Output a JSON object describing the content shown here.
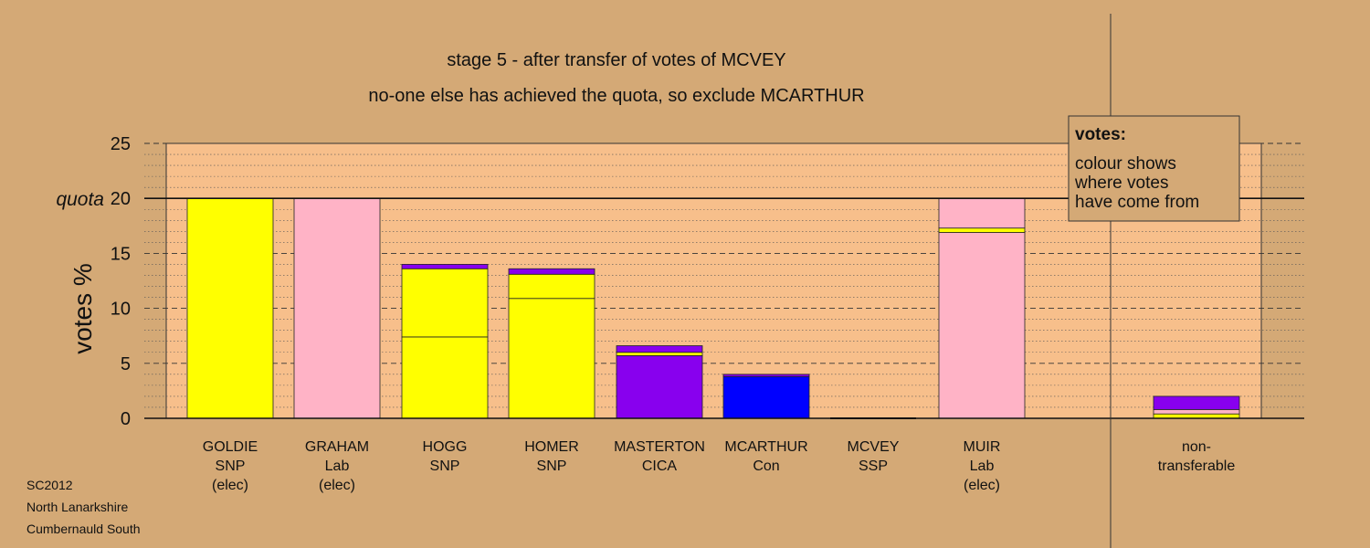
{
  "titles": [
    "stage 5 - after transfer of votes of MCVEY",
    "no-one else has achieved the quota, so exclude MCARTHUR"
  ],
  "footer": [
    "SC2012",
    "North Lanarkshire",
    "Cumbernauld South"
  ],
  "legend": {
    "title": "votes:",
    "lines": [
      "colour shows",
      "where votes",
      "have come from"
    ]
  },
  "colors": {
    "page_bg": "#d4a976",
    "plot_bg": "#f7bf8b",
    "SNP": "#ffff00",
    "Lab": "#ffb3c6",
    "CICA": "#8800ee",
    "Con": "#0000ff"
  },
  "chart_data": {
    "type": "bar",
    "stacked": true,
    "ylabel": "votes %",
    "ylim": [
      0,
      25
    ],
    "yticks": [
      0,
      5,
      10,
      15,
      20,
      25
    ],
    "quota": 20,
    "quota_label": "quota",
    "grid": true,
    "legend_position": "top-right",
    "categories": [
      {
        "lines": [
          "GOLDIE",
          "SNP",
          "(elec)"
        ],
        "segments": [
          {
            "source": "SNP",
            "value": 20.0
          }
        ]
      },
      {
        "lines": [
          "GRAHAM",
          "Lab",
          "(elec)"
        ],
        "segments": [
          {
            "source": "Lab",
            "value": 20.0
          }
        ]
      },
      {
        "lines": [
          "HOGG",
          "SNP"
        ],
        "segments": [
          {
            "source": "SNP",
            "value": 7.4
          },
          {
            "source": "SNP",
            "value": 6.2
          },
          {
            "source": "CICA",
            "value": 0.4
          }
        ]
      },
      {
        "lines": [
          "HOMER",
          "SNP"
        ],
        "segments": [
          {
            "source": "SNP",
            "value": 10.9
          },
          {
            "source": "SNP",
            "value": 2.2
          },
          {
            "source": "CICA",
            "value": 0.5
          }
        ]
      },
      {
        "lines": [
          "MASTERTON",
          "CICA"
        ],
        "segments": [
          {
            "source": "CICA",
            "value": 5.7
          },
          {
            "source": "SNP",
            "value": 0.3
          },
          {
            "source": "CICA",
            "value": 0.6
          }
        ]
      },
      {
        "lines": [
          "MCARTHUR",
          "Con"
        ],
        "segments": [
          {
            "source": "Con",
            "value": 3.8
          },
          {
            "source": "CICA",
            "value": 0.2
          }
        ]
      },
      {
        "lines": [
          "MCVEY",
          "SSP"
        ],
        "segments": []
      },
      {
        "lines": [
          "MUIR",
          "Lab",
          "(elec)"
        ],
        "segments": [
          {
            "source": "Lab",
            "value": 16.9
          },
          {
            "source": "SNP",
            "value": 0.4
          },
          {
            "source": "Lab",
            "value": 2.7
          }
        ]
      },
      {
        "lines": [
          "non-",
          "transferable"
        ],
        "segments": [
          {
            "source": "SNP",
            "value": 0.4
          },
          {
            "source": "Lab",
            "value": 0.4
          },
          {
            "source": "CICA",
            "value": 1.2
          }
        ]
      }
    ]
  }
}
